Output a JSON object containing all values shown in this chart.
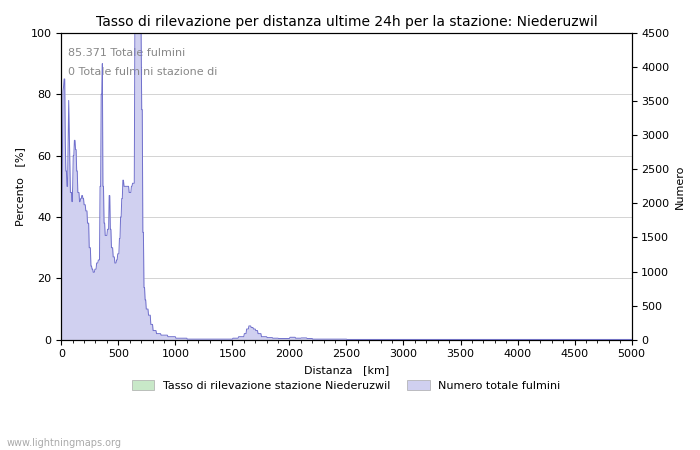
{
  "title": "Tasso di rilevazione per distanza ultime 24h per la stazione: Niederuzwil",
  "xlabel": "Distanza   [km]",
  "ylabel_left": "Percento   [%]",
  "ylabel_right": "Numero",
  "xlim": [
    0,
    5000
  ],
  "ylim_left": [
    0,
    100
  ],
  "ylim_right": [
    0,
    4500
  ],
  "yticks_left": [
    0,
    20,
    40,
    60,
    80,
    100
  ],
  "yticks_right": [
    0,
    500,
    1000,
    1500,
    2000,
    2500,
    3000,
    3500,
    4000,
    4500
  ],
  "xticks": [
    0,
    500,
    1000,
    1500,
    2000,
    2500,
    3000,
    3500,
    4000,
    4500,
    5000
  ],
  "annotation1": "85.371 Totale fulmini",
  "annotation2": "0 Totale fulmini stazione di",
  "legend_label1": "Tasso di rilevazione stazione Niederuzwil",
  "legend_label2": "Numero totale fulmini",
  "footer": "www.lightningmaps.org",
  "fill_color_green": "#c8e8c8",
  "fill_color_blue": "#d0d0f0",
  "line_color": "#7070cc",
  "background_color": "#ffffff",
  "grid_color": "#cccccc",
  "title_fontsize": 10,
  "label_fontsize": 8,
  "tick_fontsize": 8,
  "annotation_fontsize": 8,
  "legend_fontsize": 8,
  "footer_fontsize": 7
}
